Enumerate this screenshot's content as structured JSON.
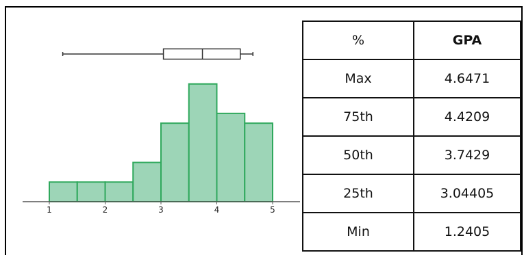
{
  "chart_data": [
    {
      "type": "histogram",
      "bin_edges": [
        1,
        1.5,
        2,
        2.5,
        3,
        3.5,
        4,
        4.5,
        5
      ],
      "counts": [
        1,
        1,
        1,
        2,
        4,
        6,
        4.5,
        4
      ],
      "xlim": [
        0.5,
        5.5
      ],
      "xticks": [
        "1",
        "2",
        "3",
        "4",
        "5"
      ],
      "color": "#9dd5b7",
      "edge_color": "#2fa85c"
    },
    {
      "type": "boxplot",
      "min": 1.2405,
      "q1": 3.04405,
      "median": 3.7429,
      "q3": 4.4209,
      "max": 4.6471
    }
  ],
  "table": {
    "header": [
      "%",
      "GPA"
    ],
    "rows": [
      [
        "Max",
        "4.6471"
      ],
      [
        "75th",
        "4.4209"
      ],
      [
        "50th",
        "3.7429"
      ],
      [
        "25th",
        "3.04405"
      ],
      [
        "Min",
        "1.2405"
      ]
    ]
  }
}
